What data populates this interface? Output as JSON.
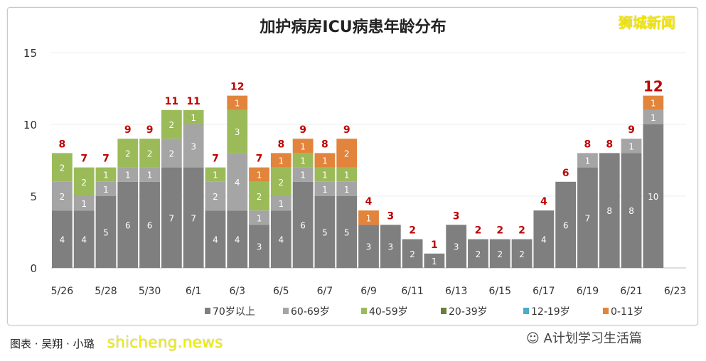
{
  "logo_text": "狮城新闻",
  "credit": "图表 · 吴翔 · 小璐",
  "watermark": "shicheng.news",
  "wechat_account": "A计划学习生活篇",
  "chart_data": {
    "type": "bar",
    "stacked": true,
    "title": "加护病房ICU病患年龄分布",
    "xlabel": "",
    "ylabel": "",
    "ylim": [
      0,
      15
    ],
    "yticks": [
      0,
      5,
      10,
      15
    ],
    "grid": true,
    "legend_position": "bottom",
    "categories": [
      "5/26",
      "5/27",
      "5/28",
      "5/29",
      "5/30",
      "5/31",
      "6/1",
      "6/2",
      "6/3",
      "6/4",
      "6/5",
      "6/6",
      "6/7",
      "6/8",
      "6/9",
      "6/10",
      "6/11",
      "6/12",
      "6/13",
      "6/14",
      "6/15",
      "6/16",
      "6/17",
      "6/18",
      "6/19",
      "6/20",
      "6/21",
      "6/22",
      "6/23"
    ],
    "xtick_labels": [
      "5/26",
      "5/28",
      "5/30",
      "6/1",
      "6/3",
      "6/5",
      "6/7",
      "6/9",
      "6/11",
      "6/13",
      "6/15",
      "6/17",
      "6/19",
      "6/21",
      "6/23"
    ],
    "series": [
      {
        "name": "70岁以上",
        "color": "#7f7f7f",
        "values": [
          4,
          4,
          5,
          6,
          6,
          7,
          7,
          4,
          4,
          3,
          4,
          6,
          5,
          5,
          3,
          3,
          2,
          1,
          3,
          2,
          2,
          2,
          4,
          6,
          7,
          8,
          8,
          10,
          0
        ]
      },
      {
        "name": "60-69岁",
        "color": "#a5a5a5",
        "values": [
          2,
          1,
          1,
          1,
          1,
          2,
          3,
          2,
          4,
          1,
          1,
          1,
          1,
          1,
          0,
          0,
          0,
          0,
          0,
          0,
          0,
          0,
          0,
          0,
          1,
          0,
          1,
          1,
          0
        ]
      },
      {
        "name": "40-59岁",
        "color": "#9bbb59",
        "values": [
          2,
          2,
          1,
          2,
          2,
          2,
          1,
          1,
          3,
          2,
          2,
          1,
          1,
          1,
          0,
          0,
          0,
          0,
          0,
          0,
          0,
          0,
          0,
          0,
          0,
          0,
          0,
          0,
          0
        ]
      },
      {
        "name": "20-39岁",
        "color": "#6b7f3a",
        "values": [
          0,
          0,
          0,
          0,
          0,
          0,
          0,
          0,
          0,
          0,
          0,
          0,
          0,
          0,
          0,
          0,
          0,
          0,
          0,
          0,
          0,
          0,
          0,
          0,
          0,
          0,
          0,
          0,
          0
        ]
      },
      {
        "name": "12-19岁",
        "color": "#4bacc6",
        "values": [
          0,
          0,
          0,
          0,
          0,
          0,
          0,
          0,
          0,
          0,
          0,
          0,
          0,
          0,
          0,
          0,
          0,
          0,
          0,
          0,
          0,
          0,
          0,
          0,
          0,
          0,
          0,
          0,
          0
        ]
      },
      {
        "name": "0-11岁",
        "color": "#e2843c",
        "values": [
          0,
          0,
          0,
          0,
          0,
          0,
          0,
          0,
          1,
          1,
          1,
          1,
          1,
          2,
          1,
          0,
          0,
          0,
          0,
          0,
          0,
          0,
          0,
          0,
          0,
          0,
          0,
          1,
          0
        ]
      }
    ],
    "totals": [
      8,
      7,
      7,
      9,
      9,
      11,
      11,
      7,
      12,
      7,
      8,
      9,
      8,
      9,
      4,
      3,
      2,
      1,
      3,
      2,
      2,
      2,
      4,
      6,
      8,
      8,
      9,
      12,
      null
    ],
    "total_label_color": "#c00000"
  }
}
